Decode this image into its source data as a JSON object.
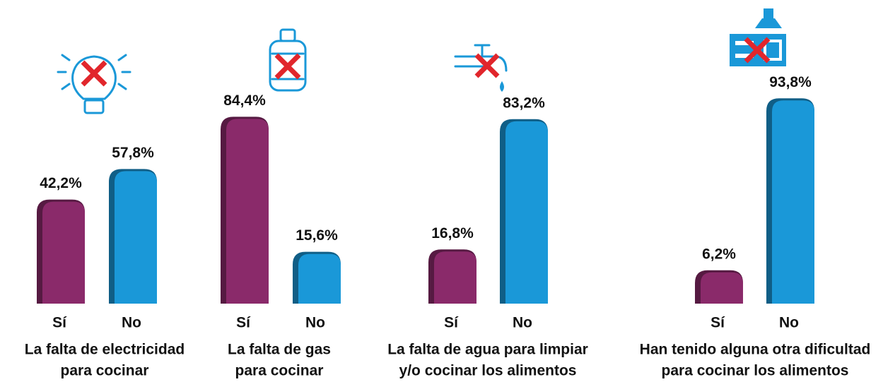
{
  "chart_data": [
    {
      "type": "bar",
      "title": [
        "La falta de electricidad",
        "para cocinar"
      ],
      "categories": [
        "Sí",
        "No"
      ],
      "values": [
        42.2,
        57.8
      ],
      "value_labels": [
        "42,2%",
        "57,8%"
      ],
      "colors": [
        "#8a2a6a",
        "#1a98d8"
      ]
    },
    {
      "type": "bar",
      "title": [
        "La falta de gas",
        "para cocinar"
      ],
      "categories": [
        "Sí",
        "No"
      ],
      "values": [
        84.4,
        15.6
      ],
      "value_labels": [
        "84,4%",
        "15,6%"
      ],
      "colors": [
        "#8a2a6a",
        "#1a98d8"
      ]
    },
    {
      "type": "bar",
      "title": [
        "La falta de agua para limpiar",
        "y/o cocinar los alimentos"
      ],
      "categories": [
        "Sí",
        "No"
      ],
      "values": [
        16.8,
        83.2
      ],
      "value_labels": [
        "16,8%",
        "83,2%"
      ],
      "colors": [
        "#8a2a6a",
        "#1a98d8"
      ]
    },
    {
      "type": "bar",
      "title": [
        "Han tenido alguna otra dificultad",
        "para cocinar los alimentos"
      ],
      "categories": [
        "Sí",
        "No"
      ],
      "values": [
        6.2,
        93.8
      ],
      "value_labels": [
        "6,2%",
        "93,8%"
      ],
      "colors": [
        "#8a2a6a",
        "#1a98d8"
      ]
    }
  ]
}
